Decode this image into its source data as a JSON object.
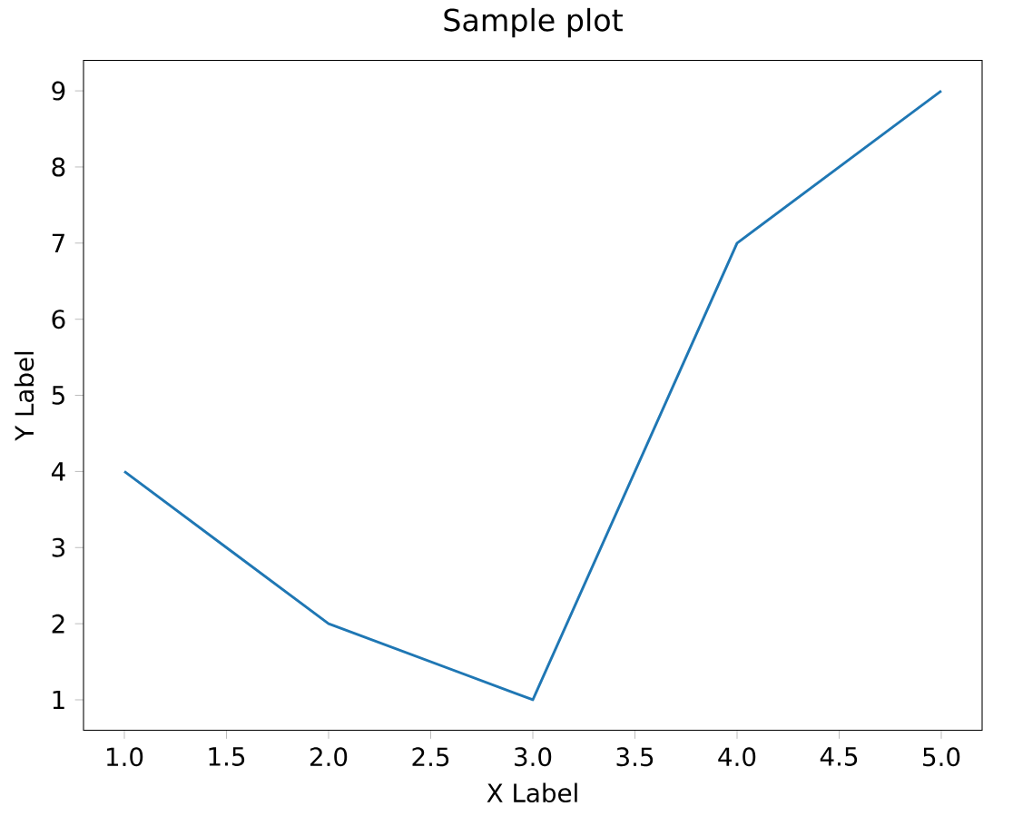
{
  "chart_data": {
    "type": "line",
    "title": "Sample plot",
    "xlabel": "X Label",
    "ylabel": "Y Label",
    "x": [
      1,
      2,
      3,
      4,
      5
    ],
    "series": [
      {
        "color": "#1f77b4",
        "values": [
          4,
          2,
          1,
          7,
          9
        ]
      }
    ],
    "xlim": [
      0.8,
      5.2
    ],
    "ylim": [
      0.6,
      9.4
    ],
    "xticks": [
      {
        "value": 1,
        "label": "1.0"
      },
      {
        "value": 1.5,
        "label": "1.5"
      },
      {
        "value": 2,
        "label": "2.0"
      },
      {
        "value": 2.5,
        "label": "2.5"
      },
      {
        "value": 3,
        "label": "3.0"
      },
      {
        "value": 3.5,
        "label": "3.5"
      },
      {
        "value": 4,
        "label": "4.0"
      },
      {
        "value": 4.5,
        "label": "4.5"
      },
      {
        "value": 5,
        "label": "5.0"
      }
    ],
    "yticks": [
      1,
      2,
      3,
      4,
      5,
      6,
      7,
      8,
      9
    ]
  }
}
